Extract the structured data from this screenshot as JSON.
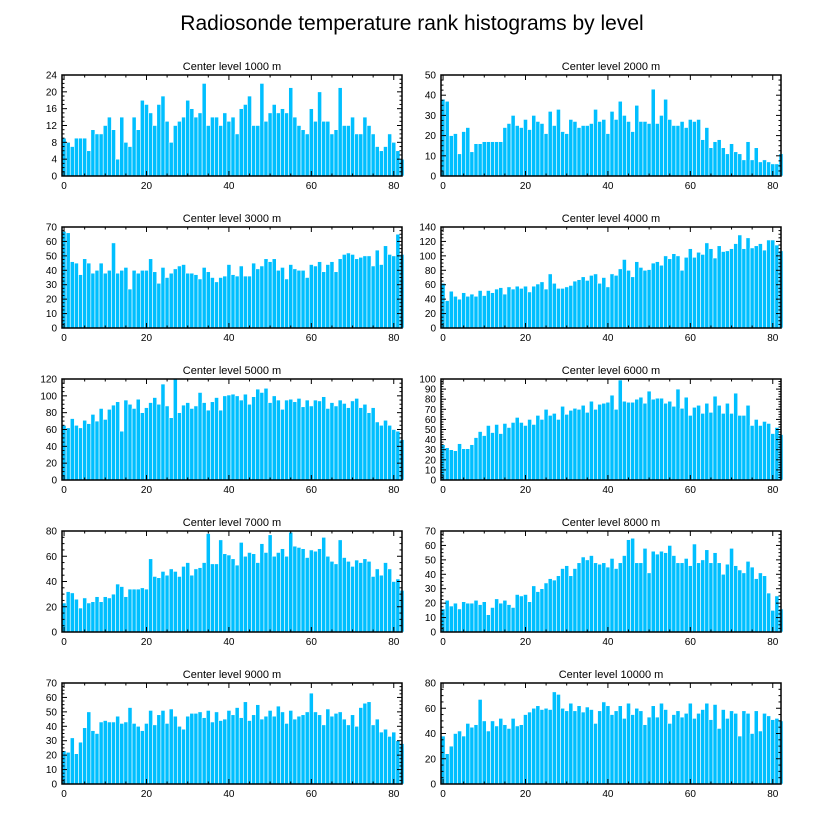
{
  "chart_data": {
    "type": "bar",
    "title": "Radiosonde temperature rank histograms by level",
    "panels": [
      {
        "title": "Center level 1000 m",
        "xlim": [
          -0.5,
          82
        ],
        "ylim": [
          0,
          24
        ],
        "xticks": [
          0,
          20,
          40,
          60,
          80
        ],
        "yticks": [
          0,
          4,
          8,
          12,
          16,
          20,
          24
        ],
        "values": [
          9,
          8,
          7,
          9,
          9,
          9,
          6,
          11,
          10,
          10,
          12,
          14,
          11,
          4,
          14,
          8,
          7,
          14,
          11,
          18,
          17,
          15,
          12,
          17,
          19,
          13,
          8,
          12,
          13,
          14,
          18,
          16,
          14,
          15,
          22,
          12,
          14,
          14,
          12,
          15,
          13,
          14,
          10,
          16,
          17,
          19,
          12,
          12,
          22,
          13,
          15,
          17,
          15,
          16,
          15,
          21,
          14,
          12,
          11,
          10,
          16,
          13,
          20,
          13,
          13,
          10,
          11,
          21,
          12,
          12,
          14,
          10,
          10,
          14,
          12,
          10,
          7,
          6,
          7,
          10,
          8,
          6,
          4
        ]
      },
      {
        "title": "Center level 2000 m",
        "xlim": [
          -0.5,
          82
        ],
        "ylim": [
          0,
          50
        ],
        "xticks": [
          0,
          20,
          40,
          60,
          80
        ],
        "yticks": [
          0,
          10,
          20,
          30,
          40,
          50
        ],
        "values": [
          38,
          37,
          20,
          21,
          11,
          22,
          24,
          12,
          16,
          16,
          17,
          17,
          17,
          17,
          17,
          24,
          26,
          30,
          25,
          24,
          28,
          23,
          30,
          27,
          26,
          21,
          32,
          25,
          33,
          22,
          21,
          28,
          27,
          24,
          25,
          25,
          26,
          33,
          27,
          28,
          21,
          32,
          28,
          37,
          30,
          27,
          22,
          35,
          27,
          27,
          26,
          43,
          26,
          30,
          38,
          28,
          25,
          25,
          27,
          24,
          28,
          27,
          28,
          18,
          24,
          14,
          17,
          18,
          14,
          11,
          16,
          12,
          11,
          8,
          17,
          8,
          14,
          7,
          8,
          7,
          6,
          6,
          11
        ]
      },
      {
        "title": "Center level 3000 m",
        "xlim": [
          -0.5,
          82
        ],
        "ylim": [
          0,
          70
        ],
        "xticks": [
          0,
          20,
          40,
          60,
          80
        ],
        "yticks": [
          0,
          10,
          20,
          30,
          40,
          50,
          60,
          70
        ],
        "values": [
          67,
          66,
          46,
          45,
          37,
          48,
          45,
          38,
          40,
          45,
          38,
          40,
          59,
          38,
          40,
          42,
          27,
          40,
          38,
          40,
          40,
          48,
          39,
          31,
          42,
          35,
          38,
          41,
          43,
          44,
          38,
          38,
          37,
          34,
          42,
          39,
          35,
          32,
          35,
          36,
          44,
          37,
          36,
          43,
          36,
          36,
          45,
          41,
          43,
          48,
          46,
          48,
          40,
          42,
          34,
          44,
          41,
          40,
          40,
          35,
          44,
          43,
          46,
          39,
          44,
          46,
          39,
          48,
          51,
          52,
          51,
          48,
          49,
          50,
          50,
          43,
          54,
          44,
          57,
          51,
          50,
          65,
          51
        ]
      },
      {
        "title": "Center level 4000 m",
        "xlim": [
          -0.5,
          82
        ],
        "ylim": [
          0,
          140
        ],
        "xticks": [
          0,
          20,
          40,
          60,
          80
        ],
        "yticks": [
          0,
          20,
          40,
          60,
          80,
          100,
          120,
          140
        ],
        "values": [
          62,
          38,
          51,
          44,
          40,
          49,
          44,
          47,
          44,
          52,
          45,
          52,
          49,
          54,
          56,
          47,
          57,
          54,
          58,
          55,
          58,
          50,
          58,
          61,
          64,
          54,
          75,
          62,
          55,
          55,
          57,
          59,
          65,
          67,
          71,
          66,
          73,
          75,
          62,
          70,
          57,
          75,
          73,
          82,
          95,
          80,
          71,
          92,
          84,
          80,
          81,
          90,
          92,
          87,
          100,
          96,
          103,
          100,
          80,
          98,
          110,
          98,
          105,
          102,
          118,
          110,
          97,
          114,
          106,
          107,
          110,
          117,
          129,
          110,
          125,
          111,
          114,
          117,
          108,
          122,
          122,
          115,
          107
        ]
      },
      {
        "title": "Center level 5000 m",
        "xlim": [
          -0.5,
          82
        ],
        "ylim": [
          0,
          120
        ],
        "xticks": [
          0,
          20,
          40,
          60,
          80
        ],
        "yticks": [
          0,
          20,
          40,
          60,
          80,
          100,
          120
        ],
        "values": [
          65,
          62,
          73,
          65,
          62,
          71,
          67,
          78,
          70,
          85,
          72,
          84,
          89,
          93,
          58,
          95,
          90,
          85,
          96,
          80,
          86,
          92,
          98,
          90,
          114,
          88,
          74,
          120,
          80,
          89,
          92,
          85,
          88,
          104,
          92,
          83,
          93,
          98,
          83,
          100,
          101,
          102,
          100,
          95,
          102,
          90,
          99,
          108,
          104,
          109,
          92,
          100,
          95,
          84,
          95,
          96,
          93,
          97,
          87,
          95,
          88,
          95,
          94,
          99,
          85,
          92,
          88,
          95,
          91,
          86,
          94,
          97,
          86,
          90,
          80,
          86,
          69,
          65,
          71,
          65,
          60,
          58,
          48
        ]
      },
      {
        "title": "Center level 6000 m",
        "xlim": [
          -0.5,
          82
        ],
        "ylim": [
          0,
          100
        ],
        "xticks": [
          0,
          20,
          40,
          60,
          80
        ],
        "yticks": [
          0,
          10,
          20,
          30,
          40,
          50,
          60,
          70,
          80,
          90,
          100
        ],
        "values": [
          35,
          32,
          30,
          29,
          36,
          31,
          31,
          35,
          42,
          48,
          44,
          54,
          47,
          55,
          46,
          56,
          52,
          57,
          62,
          57,
          54,
          60,
          55,
          64,
          60,
          70,
          64,
          66,
          60,
          73,
          65,
          69,
          71,
          70,
          74,
          67,
          78,
          70,
          75,
          76,
          77,
          84,
          70,
          99,
          78,
          77,
          77,
          80,
          82,
          76,
          88,
          80,
          81,
          81,
          76,
          78,
          73,
          90,
          71,
          82,
          64,
          72,
          74,
          66,
          76,
          67,
          83,
          74,
          66,
          76,
          66,
          86,
          64,
          64,
          74,
          54,
          60,
          54,
          58,
          56,
          46,
          52,
          45
        ]
      },
      {
        "title": "Center level 7000 m",
        "xlim": [
          -0.5,
          82
        ],
        "ylim": [
          0,
          80
        ],
        "xticks": [
          0,
          20,
          40,
          60,
          80
        ],
        "yticks": [
          0,
          20,
          40,
          60,
          80
        ],
        "values": [
          23,
          32,
          31,
          26,
          19,
          27,
          23,
          24,
          28,
          24,
          28,
          27,
          30,
          38,
          36,
          28,
          34,
          34,
          34,
          35,
          34,
          58,
          44,
          43,
          48,
          45,
          50,
          48,
          44,
          52,
          55,
          45,
          50,
          51,
          55,
          78,
          54,
          54,
          73,
          62,
          61,
          58,
          53,
          71,
          60,
          63,
          62,
          55,
          70,
          63,
          77,
          60,
          63,
          66,
          60,
          79,
          68,
          67,
          66,
          59,
          65,
          64,
          66,
          75,
          60,
          56,
          54,
          73,
          59,
          56,
          52,
          57,
          55,
          58,
          56,
          44,
          50,
          45,
          55,
          50,
          40,
          42,
          33
        ]
      },
      {
        "title": "Center level 8000 m",
        "xlim": [
          -0.5,
          82
        ],
        "ylim": [
          0,
          70
        ],
        "xticks": [
          0,
          20,
          40,
          60,
          80
        ],
        "yticks": [
          0,
          10,
          20,
          30,
          40,
          50,
          60,
          70
        ],
        "values": [
          16,
          22,
          18,
          20,
          16,
          21,
          20,
          20,
          22,
          19,
          21,
          12,
          17,
          23,
          20,
          22,
          19,
          17,
          26,
          25,
          26,
          21,
          32,
          28,
          30,
          34,
          37,
          36,
          39,
          44,
          46,
          39,
          44,
          48,
          52,
          50,
          53,
          48,
          47,
          48,
          45,
          51,
          44,
          48,
          53,
          64,
          65,
          48,
          48,
          58,
          41,
          56,
          54,
          56,
          55,
          60,
          53,
          48,
          48,
          51,
          46,
          61,
          48,
          50,
          57,
          48,
          55,
          48,
          40,
          47,
          58,
          46,
          43,
          41,
          49,
          45,
          37,
          41,
          39,
          27,
          15,
          25,
          16
        ]
      },
      {
        "title": "Center level 9000 m",
        "xlim": [
          -0.5,
          82
        ],
        "ylim": [
          0,
          70
        ],
        "xticks": [
          0,
          20,
          40,
          60,
          80
        ],
        "yticks": [
          0,
          10,
          20,
          30,
          40,
          50,
          60,
          70
        ],
        "values": [
          23,
          22,
          32,
          21,
          29,
          39,
          50,
          37,
          35,
          43,
          44,
          43,
          43,
          47,
          42,
          43,
          53,
          42,
          40,
          37,
          42,
          51,
          41,
          48,
          51,
          42,
          52,
          47,
          40,
          38,
          47,
          49,
          49,
          50,
          46,
          51,
          43,
          50,
          44,
          45,
          51,
          48,
          53,
          46,
          57,
          44,
          48,
          55,
          45,
          47,
          51,
          47,
          54,
          50,
          42,
          51,
          45,
          47,
          48,
          50,
          63,
          50,
          48,
          41,
          52,
          47,
          49,
          50,
          45,
          41,
          48,
          40,
          53,
          56,
          57,
          41,
          45,
          36,
          38,
          33,
          36,
          30,
          28
        ]
      },
      {
        "title": "Center level 10000 m",
        "xlim": [
          -0.5,
          82
        ],
        "ylim": [
          0,
          80
        ],
        "xticks": [
          0,
          20,
          40,
          60,
          80
        ],
        "yticks": [
          0,
          20,
          40,
          60,
          80
        ],
        "values": [
          38,
          24,
          30,
          40,
          42,
          38,
          48,
          45,
          47,
          67,
          50,
          42,
          50,
          46,
          52,
          47,
          44,
          52,
          46,
          47,
          55,
          57,
          60,
          62,
          59,
          60,
          59,
          73,
          71,
          60,
          58,
          64,
          58,
          62,
          57,
          61,
          59,
          48,
          58,
          65,
          62,
          55,
          58,
          62,
          52,
          64,
          55,
          60,
          58,
          47,
          53,
          62,
          53,
          64,
          59,
          48,
          55,
          58,
          53,
          56,
          64,
          52,
          56,
          59,
          64,
          51,
          63,
          44,
          59,
          52,
          58,
          56,
          38,
          58,
          56,
          40,
          58,
          42,
          56,
          54,
          51,
          52,
          50
        ]
      }
    ]
  }
}
